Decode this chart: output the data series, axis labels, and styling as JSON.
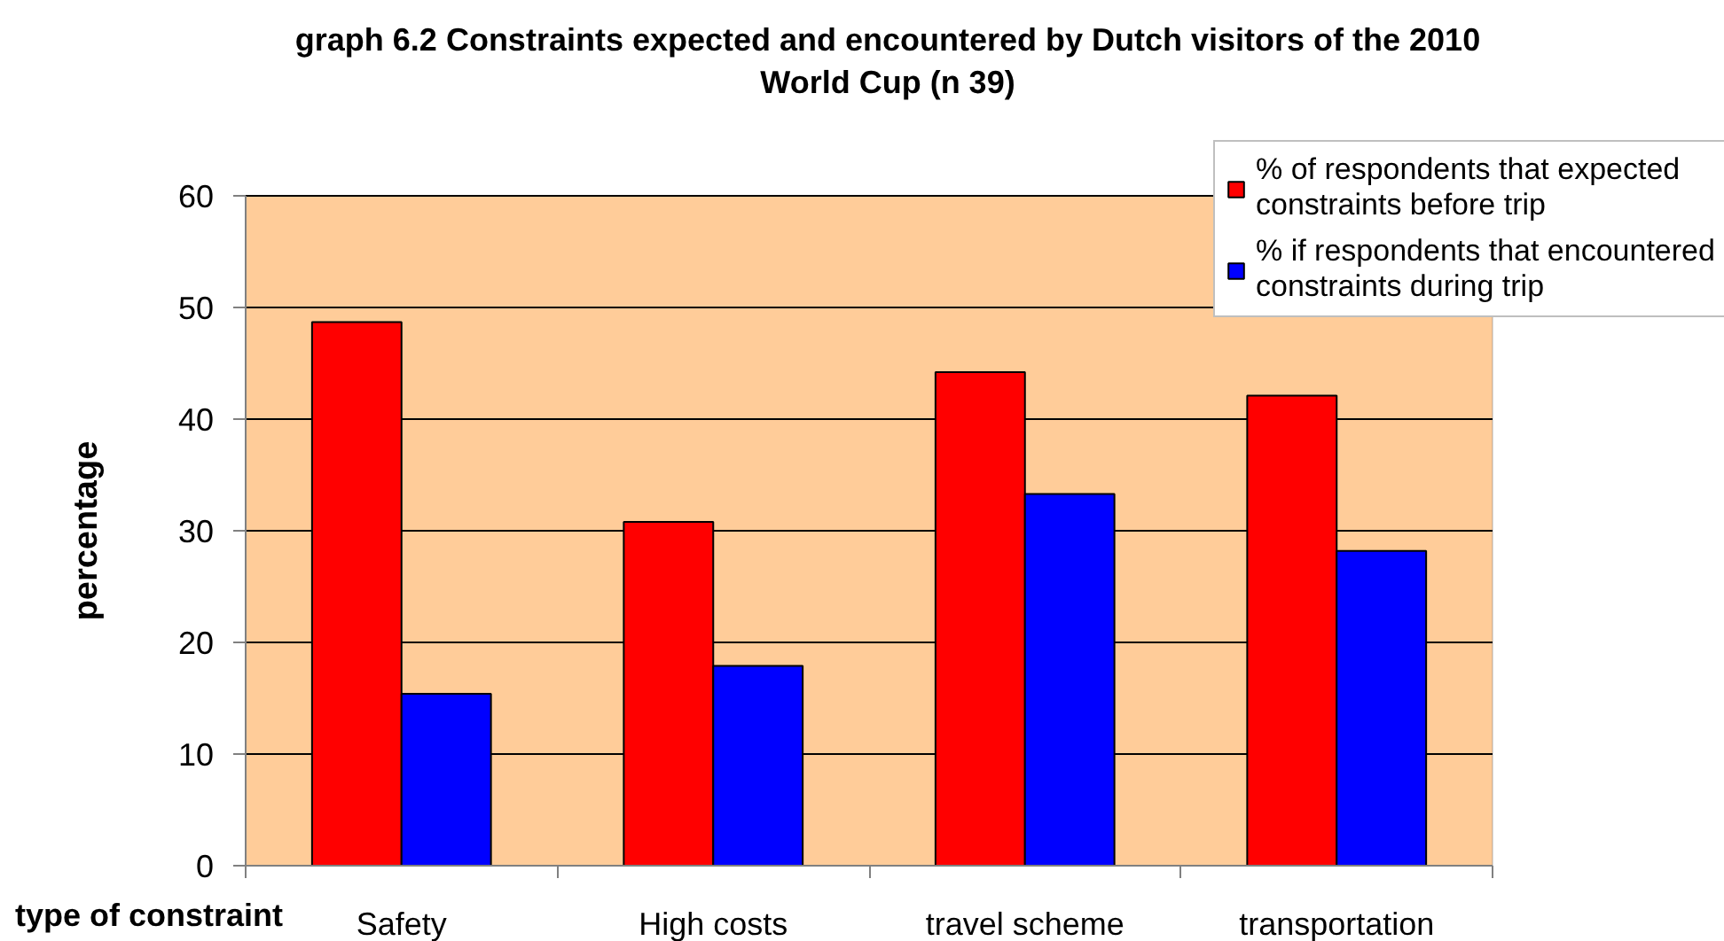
{
  "chart_data": {
    "type": "bar",
    "title": "graph 6.2 Constraints expected and encountered by Dutch visitors of the 2010 World Cup (n 39)",
    "xlabel": "type of constraint",
    "ylabel": "percentage",
    "categories": [
      "Safety",
      "High costs",
      "travel scheme",
      "transportation"
    ],
    "series": [
      {
        "name": "% of respondents that expected constraints before trip",
        "color": "#ff0000",
        "values": [
          48.7,
          30.8,
          44.2,
          42.1
        ]
      },
      {
        "name": "% if respondents that encountered constraints during trip",
        "color": "#0000ff",
        "values": [
          15.4,
          17.9,
          33.3,
          28.2
        ]
      }
    ],
    "ylim": [
      0,
      60
    ],
    "yticks": [
      0,
      10,
      20,
      30,
      40,
      50,
      60
    ],
    "grid": "y",
    "legend": "top right"
  }
}
